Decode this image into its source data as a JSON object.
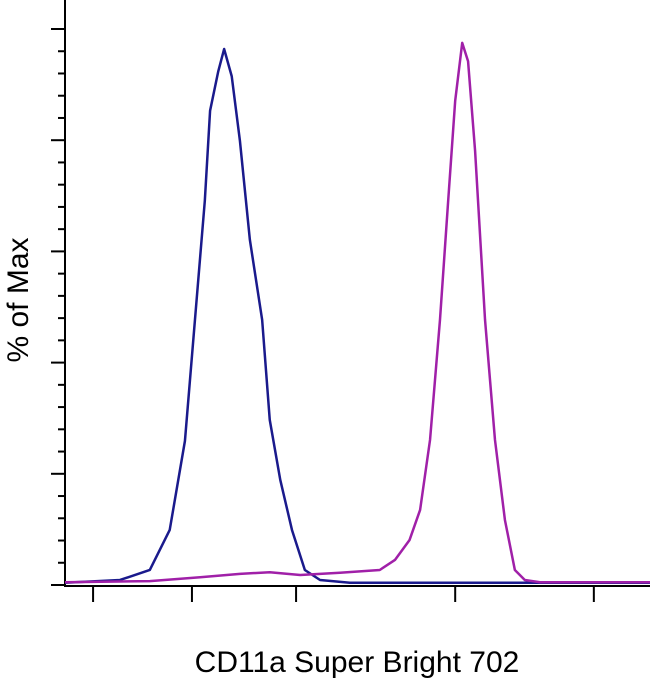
{
  "chart_data": {
    "type": "line",
    "x_label": "CD11a Super Bright 702",
    "y_label": "% of Max",
    "xlim": [
      0,
      100
    ],
    "ylim": [
      0,
      100
    ],
    "xticks": [
      4.8,
      21.7,
      39.5,
      66.7,
      90.4
    ],
    "yticks": [
      0,
      20,
      40,
      60,
      80,
      100
    ],
    "yminorticks": [
      4,
      8,
      12,
      16,
      24,
      28,
      32,
      36,
      44,
      48,
      52,
      56,
      64,
      68,
      72,
      76,
      84,
      88,
      92,
      96
    ],
    "series": [
      {
        "color": "#1a1a8c",
        "x": [
          0,
          9.4,
          14.5,
          17.9,
          20.5,
          22.2,
          23.9,
          24.8,
          26.2,
          27.2,
          28.5,
          29.9,
          31.6,
          33.7,
          35.0,
          36.8,
          38.8,
          41.0,
          43.6,
          48.7,
          100
        ],
        "values": [
          0.4,
          0.9,
          2.7,
          9.9,
          25.9,
          47.5,
          69.1,
          85.3,
          92.4,
          96.4,
          91.5,
          79.9,
          62.1,
          47.7,
          29.7,
          18.9,
          9.9,
          2.7,
          0.9,
          0.4,
          0.4
        ]
      },
      {
        "color": "#a020a8",
        "x": [
          0,
          14.5,
          23.1,
          29.9,
          35.0,
          40.2,
          47.0,
          53.8,
          56.4,
          58.9,
          60.7,
          62.4,
          64.1,
          65.5,
          66.7,
          67.9,
          68.9,
          70.1,
          71.8,
          73.5,
          75.2,
          76.9,
          78.6,
          81.2,
          100
        ],
        "values": [
          0.5,
          0.7,
          1.4,
          2.0,
          2.3,
          1.8,
          2.2,
          2.7,
          4.5,
          8.1,
          13.5,
          26.1,
          47.7,
          69.1,
          87.1,
          97.5,
          94.2,
          78.1,
          47.7,
          26.1,
          11.7,
          2.7,
          0.9,
          0.5,
          0.5
        ]
      }
    ]
  }
}
